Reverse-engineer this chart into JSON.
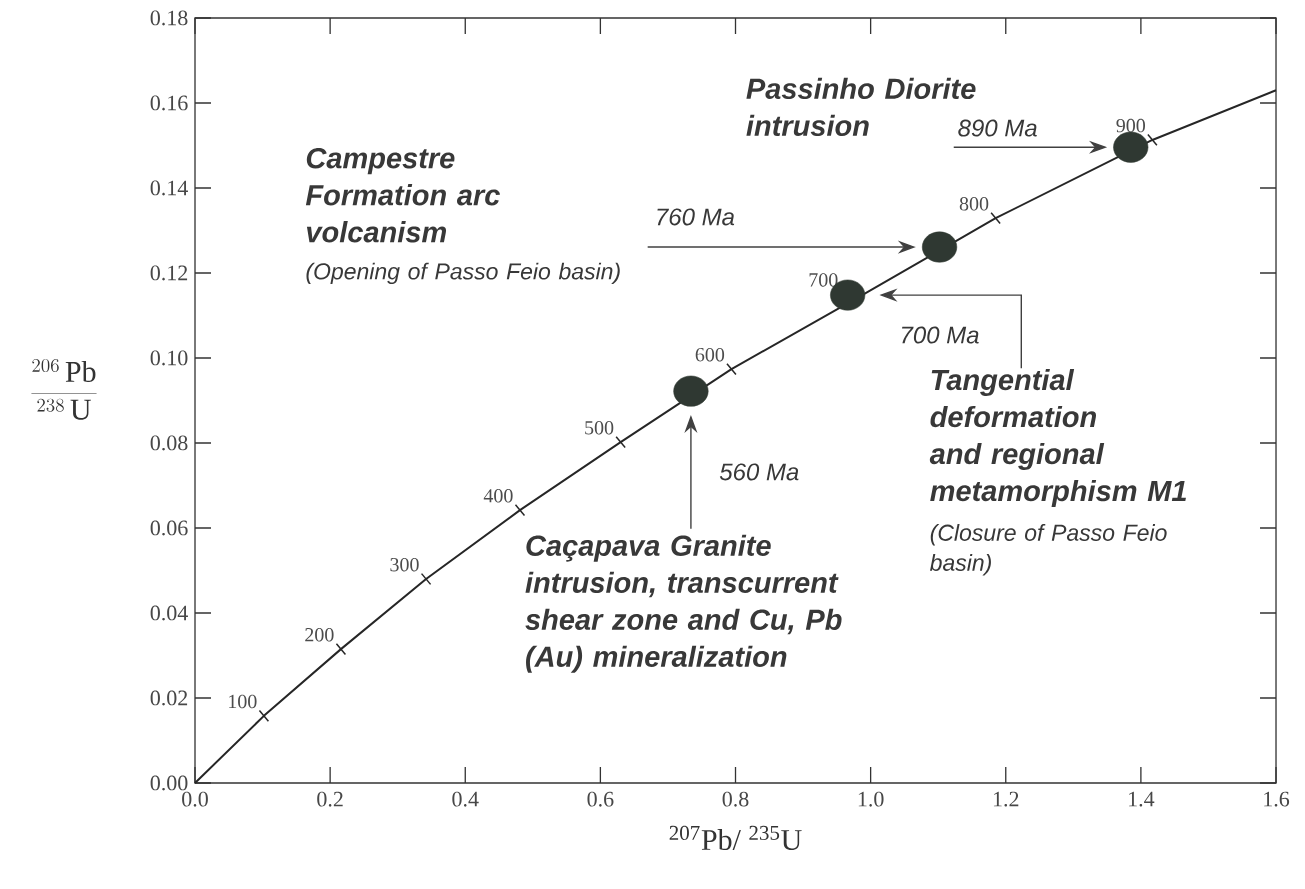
{
  "chart_data": {
    "type": "line",
    "xlabel": "$^{207}$Pb/ $^{235}$U",
    "ylabel": "\\frac{^{206}\\,\\mathrm{Pb}}{^{238}\\,\\mathrm{U}}",
    "xlim": [
      0,
      1.6
    ],
    "ylim": [
      0,
      0.18
    ],
    "xticks": [
      {
        "value": 0,
        "label": "0.0"
      },
      0.2,
      0.4,
      0.6,
      0.8,
      {
        "value": 1,
        "label": "1.0"
      },
      1.2,
      1.4,
      1.6
    ],
    "yticks": [
      {
        "value": 0,
        "label": "0.00"
      },
      0.02,
      0.04,
      0.06,
      0.08,
      {
        "value": 0.1,
        "label": "0.10"
      },
      0.12,
      0.14,
      0.16,
      0.18
    ],
    "series": [
      {
        "color": "#262626",
        "line_style": "solid",
        "x": [
          0,
          0.102,
          0.216,
          0.342,
          0.481,
          0.63,
          0.794,
          0.99,
          1.185,
          1.417,
          1.6
        ],
        "values": [
          0,
          0.0158,
          0.0315,
          0.048,
          0.0642,
          0.0802,
          0.0974,
          0.115,
          0.1329,
          0.1513,
          0.163
        ]
      },
      {
        "type": "scatter",
        "color": "#262626",
        "marker": "cross",
        "x": [
          0.102,
          0.216,
          0.342,
          0.481,
          0.63,
          0.794,
          0.99,
          1.185,
          1.417
        ],
        "values": [
          0.0158,
          0.0315,
          0.048,
          0.0642,
          0.0802,
          0.0974,
          null,
          0.1329,
          0.1513
        ]
      },
      {
        "type": "scatter",
        "color": "#2f3832",
        "marker": "circle",
        "x": [
          0.734,
          0.966,
          1.102,
          1.385
        ],
        "values": [
          0.0922,
          0.1148,
          0.1261,
          0.1496
        ]
      }
    ],
    "annotations": [
      "Campestre Formation arc volcanism",
      "(Opening of Passo Feio basin)",
      "Passinho Diorite intrusion",
      "Tangential deformation and regional metamorphism M1",
      "(Closure of Passo Feio basin)",
      "Caçapava Granite intrusion, transcurrent shear zone and Cu, Pb (Au) mineralization",
      "560 Ma",
      "700 Ma",
      "760 Ma",
      "890 Ma",
      {
        "text": "100",
        "x": 0.102,
        "y": 0.0158
      },
      {
        "text": "200",
        "x": 0.216,
        "y": 0.0315
      },
      {
        "text": "300",
        "x": 0.342,
        "y": 0.048
      },
      {
        "text": "400",
        "x": 0.481,
        "y": 0.0642
      },
      {
        "text": "500",
        "x": 0.63,
        "y": 0.0802
      },
      {
        "text": "600",
        "x": 0.794,
        "y": 0.0974
      },
      {
        "text": "700",
        "x": 0.99,
        "y": 0.115
      },
      {
        "text": "800",
        "x": 1.185,
        "y": 0.1329
      },
      {
        "text": "900",
        "x": 1.417,
        "y": 0.1513
      }
    ]
  }
}
